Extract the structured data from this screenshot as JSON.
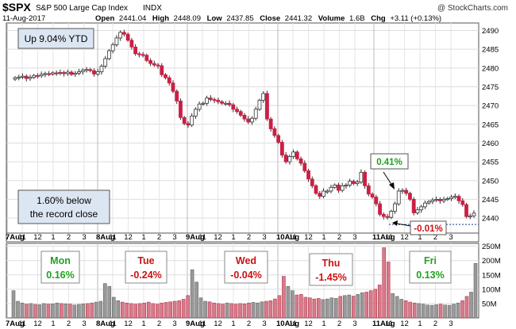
{
  "header": {
    "symbol": "$SPX",
    "name": "S&P 500 Large Cap Index",
    "exchange": "INDX",
    "watermark": "@ StockCharts.com",
    "date": "11-Aug-2017",
    "open_label": "Open",
    "open": "2441.04",
    "high_label": "High",
    "high": "2448.09",
    "low_label": "Low",
    "low": "2437.85",
    "close_label": "Close",
    "close": "2441.32",
    "volume_label": "Volume",
    "volume": "1.6B",
    "chg_label": "Chg",
    "chg": "+3.11 (+0.13%)"
  },
  "annotations": {
    "ytd": "Up 9.04% YTD",
    "record_line1": "1.60% below",
    "record_line2": "the record close",
    "callout_up": "0.41%",
    "callout_down": "-0.01%"
  },
  "days": [
    {
      "name": "Mon",
      "pct": "0.16%",
      "color": "#22a022"
    },
    {
      "name": "Tue",
      "pct": "-0.24%",
      "color": "#cc1111"
    },
    {
      "name": "Wed",
      "pct": "-0.04%",
      "color": "#cc1111"
    },
    {
      "name": "Thu",
      "pct": "-1.45%",
      "color": "#cc1111"
    },
    {
      "name": "Fri",
      "pct": "0.13%",
      "color": "#22a022"
    }
  ],
  "chart_data": {
    "type": "candlestick",
    "title": "$SPX S&P 500 Large Cap Index INDX",
    "price_axis": {
      "min": 2436,
      "max": 2492,
      "ticks": [
        2440,
        2445,
        2450,
        2455,
        2460,
        2465,
        2470,
        2475,
        2480,
        2485,
        2490
      ]
    },
    "volume_axis": {
      "min": 0,
      "max": 260,
      "unit": "M",
      "ticks": [
        "50M",
        "100M",
        "150M",
        "200M",
        "250M"
      ]
    },
    "x_tick_labels": [
      "7Aug",
      "11",
      "12",
      "1",
      "2",
      "3",
      "8Aug",
      "11",
      "12",
      "1",
      "2",
      "3",
      "9Aug",
      "11",
      "12",
      "1",
      "2",
      "3",
      "10Aug",
      "11",
      "12",
      "1",
      "2",
      "3",
      "11Aug",
      "11",
      "12",
      "1",
      "2",
      "3"
    ],
    "sessions": [
      "7Aug",
      "8Aug",
      "9Aug",
      "10Aug",
      "11Aug"
    ],
    "colors": {
      "up": "#ffffff",
      "down": "#cc1f45",
      "volume_up": "#999999",
      "volume_down": "#d97a8a"
    },
    "close_series": [
      2477.4,
      2477.6,
      2477.8,
      2477.2,
      2477.5,
      2478.0,
      2477.9,
      2478.3,
      2478.5,
      2478.4,
      2478.7,
      2478.6,
      2478.8,
      2478.5,
      2478.9,
      2478.3,
      2478.6,
      2479.0,
      2479.4,
      2479.6,
      2479.3,
      2478.4,
      2479.0,
      2480.5,
      2482.5,
      2484.6,
      2486.2,
      2488.0,
      2489.5,
      2489.0,
      2487.4,
      2485.6,
      2483.8,
      2483.6,
      2483.4,
      2482.0,
      2481.2,
      2480.8,
      2480.6,
      2478.2,
      2477.4,
      2476.0,
      2473.8,
      2471.2,
      2466.8,
      2465.2,
      2464.8,
      2467.2,
      2469.0,
      2470.4,
      2470.6,
      2472.0,
      2471.6,
      2471.4,
      2471.0,
      2470.6,
      2470.6,
      2470.2,
      2469.0,
      2468.4,
      2467.4,
      2466.4,
      2465.6,
      2466.6,
      2469.0,
      2471.4,
      2473.2,
      2466.4,
      2463.8,
      2462.0,
      2460.2,
      2456.8,
      2455.0,
      2456.4,
      2457.6,
      2455.8,
      2454.6,
      2452.6,
      2450.4,
      2448.6,
      2446.6,
      2445.8,
      2447.2,
      2447.2,
      2448.2,
      2448.8,
      2447.4,
      2448.6,
      2448.8,
      2449.8,
      2449.2,
      2449.6,
      2452.2,
      2448.6,
      2446.4,
      2445.6,
      2443.8,
      2441.0,
      2440.4,
      2440.2,
      2441.8,
      2443.8,
      2447.2,
      2447.4,
      2446.6,
      2445.0,
      2441.4,
      2442.2,
      2443.0,
      2444.0,
      2444.4,
      2444.8,
      2445.0,
      2444.6,
      2445.0,
      2445.2,
      2445.6,
      2445.8,
      2444.6,
      2443.6,
      2440.4,
      2440.6,
      2441.3
    ],
    "volume_series": [
      95,
      58,
      52,
      48,
      50,
      47,
      46,
      50,
      48,
      49,
      52,
      50,
      49,
      48,
      45,
      47,
      49,
      50,
      52,
      55,
      58,
      120,
      110,
      72,
      60,
      55,
      52,
      50,
      48,
      50,
      52,
      55,
      50,
      48,
      52,
      54,
      56,
      58,
      60,
      65,
      78,
      168,
      125,
      70,
      58,
      56,
      52,
      50,
      48,
      52,
      50,
      48,
      50,
      49,
      52,
      54,
      52,
      56,
      58,
      60,
      66,
      78,
      145,
      110,
      95,
      80,
      82,
      72,
      70,
      66,
      68,
      64,
      66,
      70,
      68,
      75,
      78,
      80,
      76,
      82,
      88,
      90,
      95,
      100,
      115,
      245,
      195,
      85,
      75,
      65,
      60,
      55,
      52,
      50,
      48,
      45,
      44,
      46,
      48,
      45,
      44,
      48,
      52,
      60,
      75,
      90,
      190
    ]
  }
}
